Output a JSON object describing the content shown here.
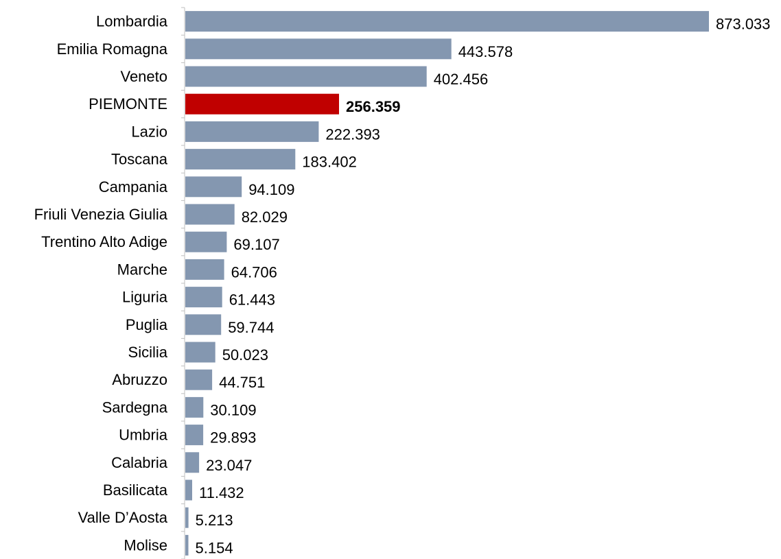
{
  "chart_data": {
    "type": "bar",
    "orientation": "horizontal",
    "title": "",
    "xlabel": "",
    "ylabel": "",
    "categories": [
      "Lombardia",
      "Emilia Romagna",
      "Veneto",
      "PIEMONTE",
      "Lazio",
      "Toscana",
      "Campania",
      "Friuli Venezia Giulia",
      "Trentino Alto Adige",
      "Marche",
      "Liguria",
      "Puglia",
      "Sicilia",
      "Abruzzo",
      "Sardegna",
      "Umbria",
      "Calabria",
      "Basilicata",
      "Valle D’Aosta",
      "Molise"
    ],
    "values": [
      873033,
      443578,
      402456,
      256359,
      222393,
      183402,
      94109,
      82029,
      69107,
      64706,
      61443,
      59744,
      50023,
      44751,
      30109,
      29893,
      23047,
      11432,
      5213,
      5154
    ],
    "value_labels": [
      "873.033",
      "443.578",
      "402.456",
      "256.359",
      "222.393",
      "183.402",
      "94.109",
      "82.029",
      "69.107",
      "64.706",
      "61.443",
      "59.744",
      "50.023",
      "44.751",
      "30.109",
      "29.893",
      "23.047",
      "11.432",
      "5.213",
      "5.154"
    ],
    "highlight_category": "PIEMONTE",
    "xlim": [
      0,
      873033
    ],
    "grid": false,
    "legend": "none",
    "colors": {
      "bar": "#8497b0",
      "highlight": "#c00000",
      "axis": "#bfbfbf"
    }
  }
}
